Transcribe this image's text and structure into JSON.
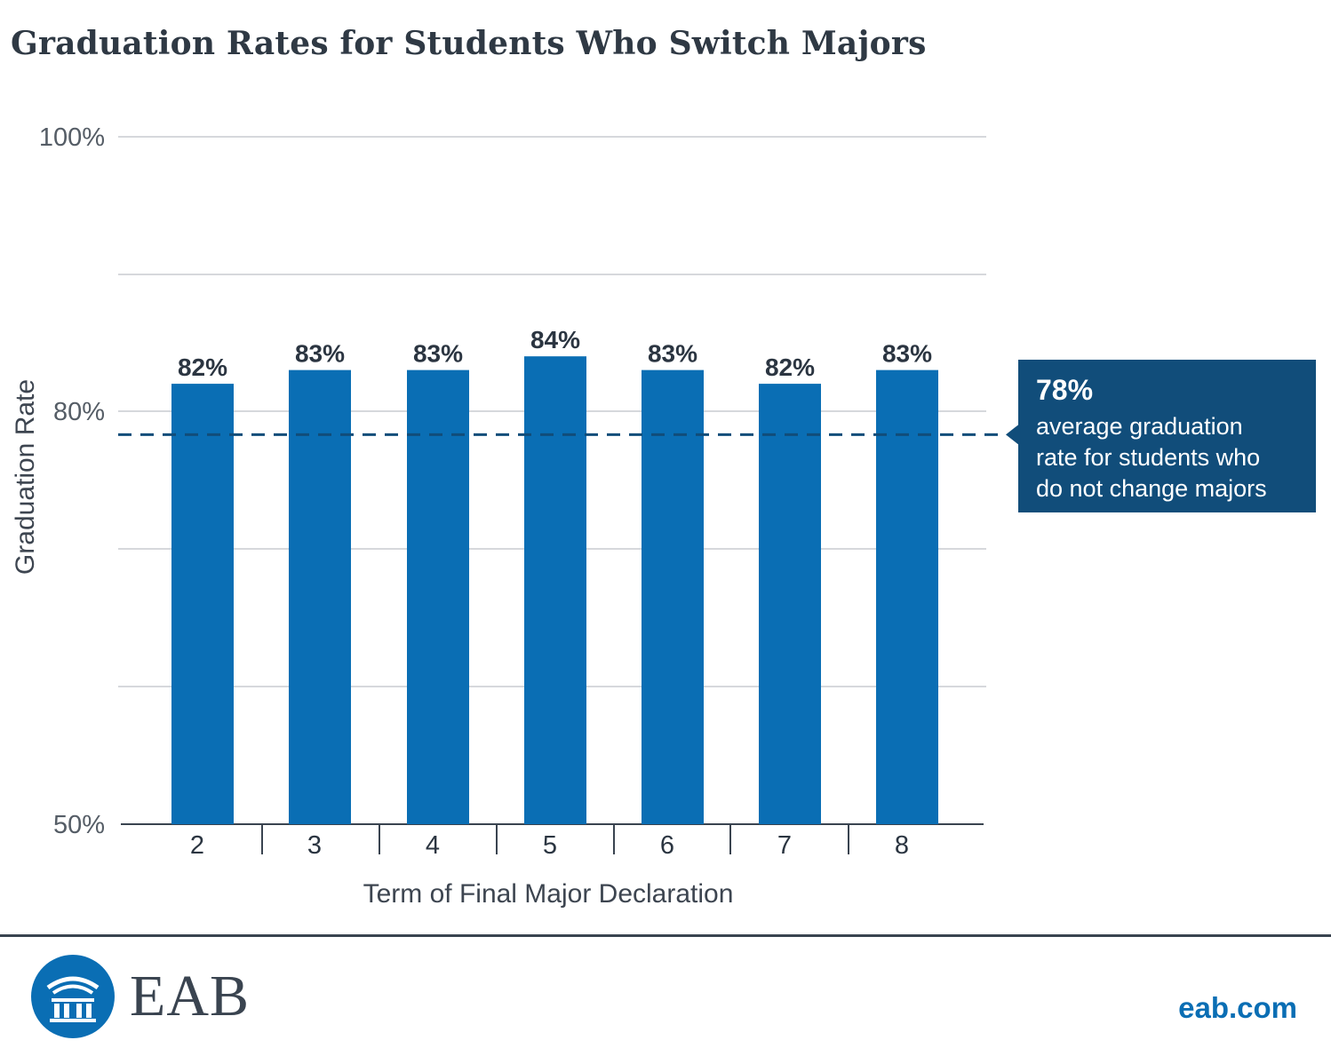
{
  "chart_data": {
    "type": "bar",
    "title": "Graduation Rates for Students Who Switch Majors",
    "xlabel": "Term of Final Major Declaration",
    "ylabel": "Graduation Rate",
    "categories": [
      "2",
      "3",
      "4",
      "5",
      "6",
      "7",
      "8"
    ],
    "values": [
      82,
      83,
      83,
      84,
      83,
      82,
      83
    ],
    "value_labels": [
      "82%",
      "83%",
      "83%",
      "84%",
      "83%",
      "82%",
      "83%"
    ],
    "ylim": [
      50,
      100
    ],
    "y_tick_labels": [
      {
        "value": 100,
        "label": "100%"
      },
      {
        "value": 80,
        "label": "80%"
      },
      {
        "value": 50,
        "label": "50%"
      }
    ],
    "gridlines": [
      100,
      90,
      80,
      70,
      60
    ],
    "reference_line": {
      "value": 78.3,
      "style": "dashed",
      "callout_value": "78%",
      "callout_text": [
        "average graduation",
        "rate for students who",
        "do not change majors"
      ]
    },
    "colors": {
      "bar": "#0a6eb4",
      "reference": "#114d7a",
      "callout_bg": "#114d7a",
      "grid": "#c9ccd0"
    }
  },
  "footer": {
    "brand": "EAB",
    "url": "eab.com",
    "logo_icon": "building-columns-icon"
  }
}
